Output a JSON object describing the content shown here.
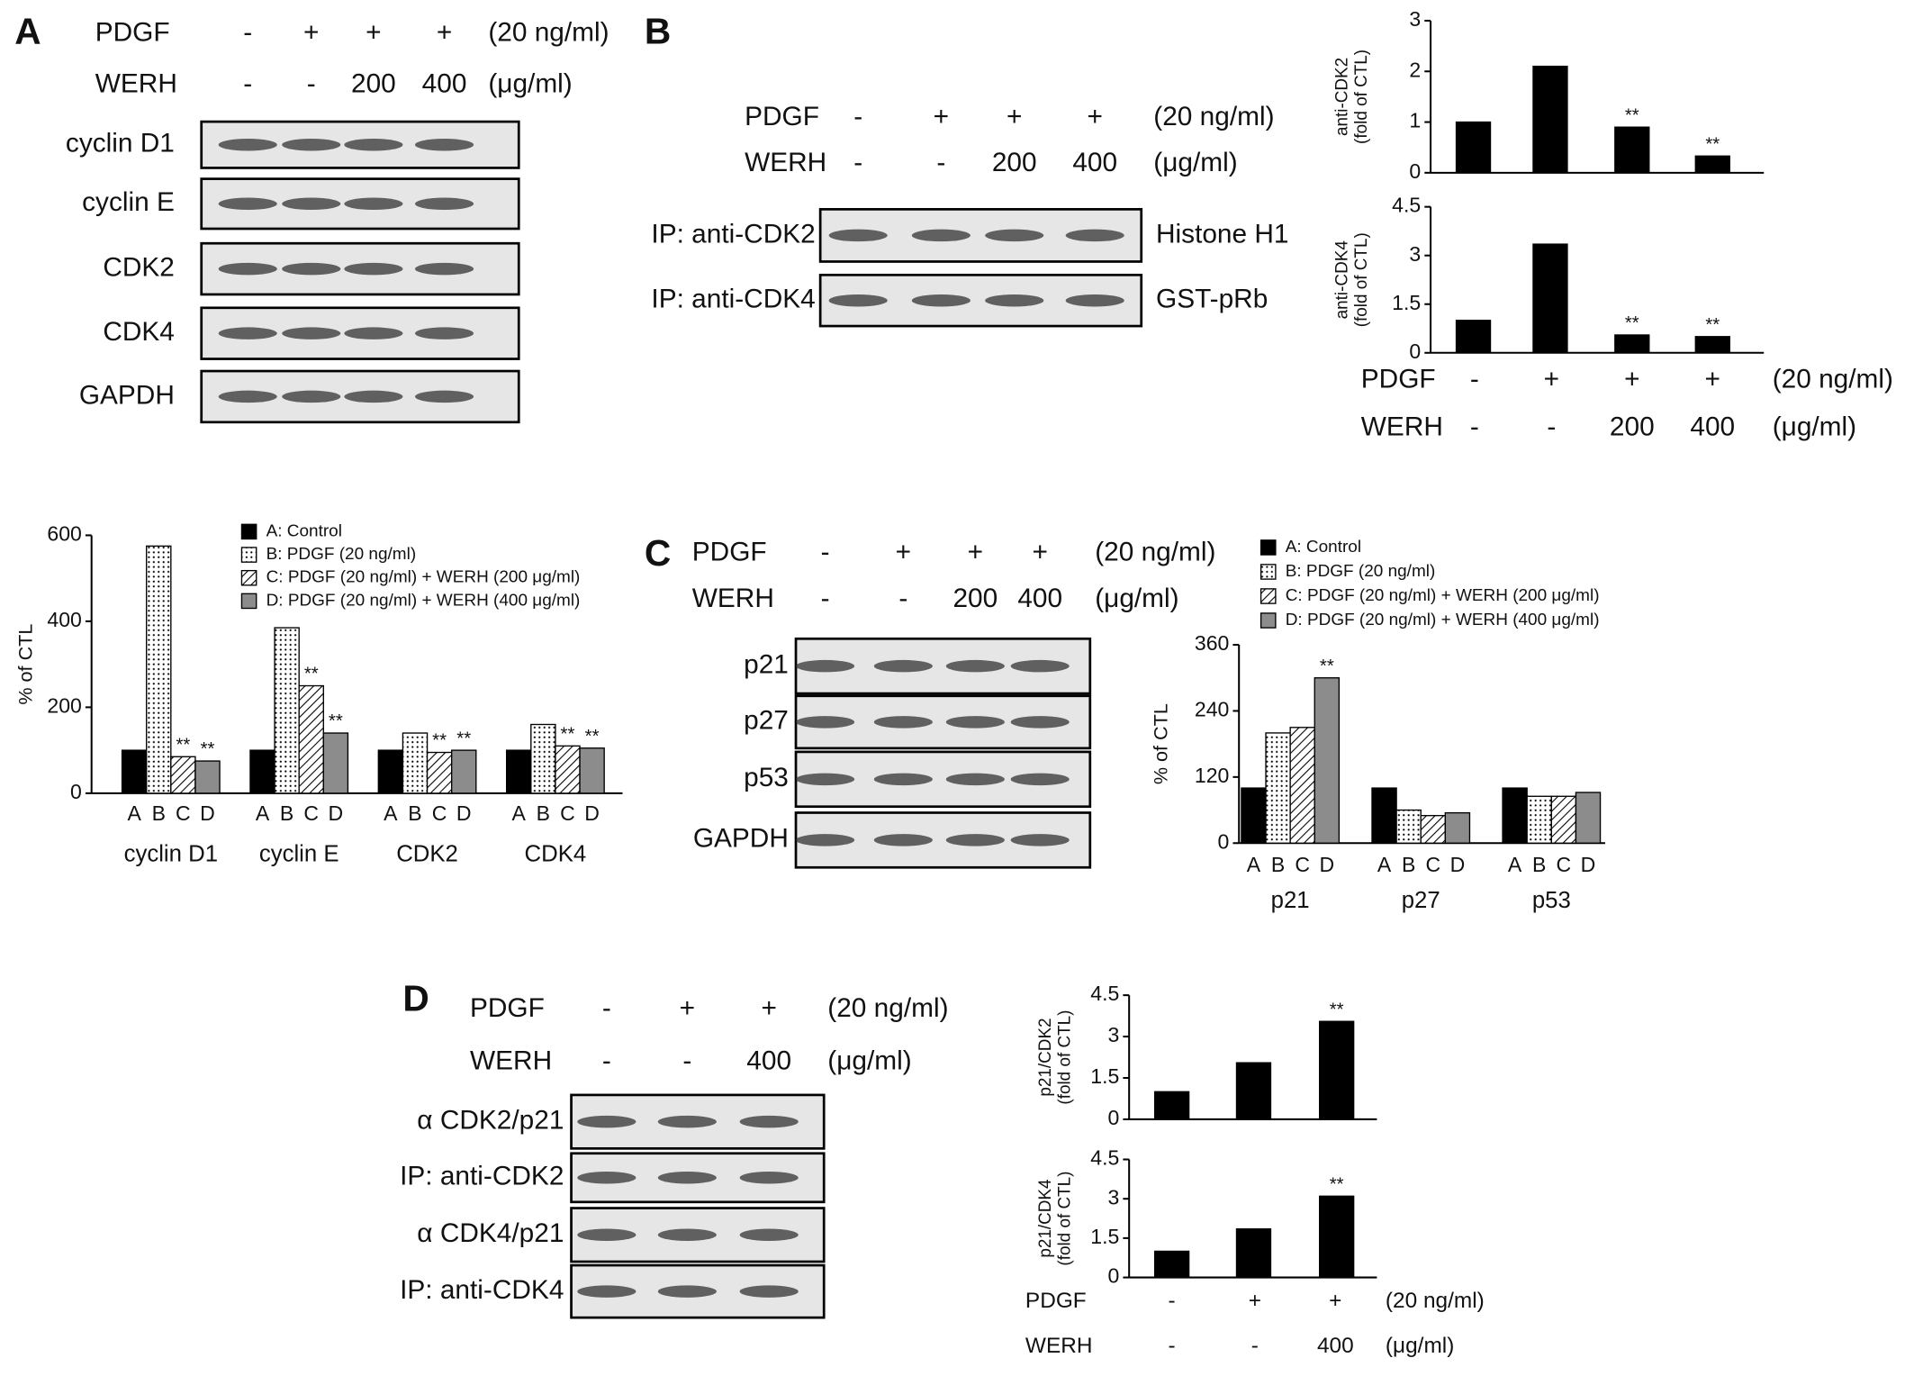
{
  "panels": [
    {
      "letter": "A",
      "treatments": [
        {
          "name": "PDGF",
          "levels": [
            "-",
            "+",
            "+",
            "+"
          ],
          "unit": "(20 ng/ml)"
        },
        {
          "name": "WERH",
          "levels": [
            "-",
            "-",
            "200",
            "400"
          ],
          "unit": "(μg/ml)"
        }
      ],
      "blot_rows": [
        "cyclin D1",
        "cyclin E",
        "CDK2",
        "CDK4",
        "GAPDH"
      ]
    },
    {
      "letter": "B",
      "treatments": [
        {
          "name": "PDGF",
          "levels": [
            "-",
            "+",
            "+",
            "+"
          ],
          "unit": "(20 ng/ml)"
        },
        {
          "name": "WERH",
          "levels": [
            "-",
            "-",
            "200",
            "400"
          ],
          "unit": "(μg/ml)"
        }
      ],
      "blot_rows": [
        "IP: anti-CDK2",
        "IP: anti-CDK4"
      ],
      "blot_substrates": [
        "Histone H1",
        "GST-pRb"
      ],
      "chart_treatments": [
        {
          "name": "PDGF",
          "levels": [
            "-",
            "+",
            "+",
            "+"
          ],
          "unit": "(20 ng/ml)"
        },
        {
          "name": "WERH",
          "levels": [
            "-",
            "-",
            "200",
            "400"
          ],
          "unit": "(μg/ml)"
        }
      ]
    },
    {
      "letter": "C",
      "treatments": [
        {
          "name": "PDGF",
          "levels": [
            "-",
            "+",
            "+",
            "+"
          ],
          "unit": "(20 ng/ml)"
        },
        {
          "name": "WERH",
          "levels": [
            "-",
            "-",
            "200",
            "400"
          ],
          "unit": "(μg/ml)"
        }
      ],
      "blot_rows": [
        "p21",
        "p27",
        "p53",
        "GAPDH"
      ]
    },
    {
      "letter": "D",
      "treatments": [
        {
          "name": "PDGF",
          "levels": [
            "-",
            "+",
            "+"
          ],
          "unit": "(20 ng/ml)"
        },
        {
          "name": "WERH",
          "levels": [
            "-",
            "-",
            "400"
          ],
          "unit": "(μg/ml)"
        }
      ],
      "blot_rows": [
        "α CDK2/p21",
        "IP: anti-CDK2",
        "α CDK4/p21",
        "IP: anti-CDK4"
      ],
      "chart_treatments": [
        {
          "name": "PDGF",
          "levels": [
            "-",
            "+",
            "+"
          ],
          "unit": "(20 ng/ml)"
        },
        {
          "name": "WERH",
          "levels": [
            "-",
            "-",
            "400"
          ],
          "unit": "(μg/ml)"
        }
      ]
    }
  ],
  "chart_data": [
    {
      "type": "bar",
      "ylabel": [
        "% of CTL"
      ],
      "categories": [
        "cyclin D1",
        "cyclin E",
        "CDK2",
        "CDK4"
      ],
      "bar_labels": [
        "A",
        "B",
        "C",
        "D"
      ],
      "series": [
        {
          "name": "A: Control",
          "color": "#000000",
          "values": [
            100,
            100,
            100,
            100
          ]
        },
        {
          "name": "B: PDGF (20 ng/ml)",
          "color": "#ffffff",
          "pattern": "dots",
          "values": [
            575,
            385,
            140,
            160
          ]
        },
        {
          "name": "C: PDGF (20 ng/ml) + WERH (200 μg/ml)",
          "color": "#ffffff",
          "pattern": "hatch",
          "values": [
            85,
            250,
            95,
            110
          ],
          "annotations": [
            "**",
            "**",
            "**",
            "**"
          ]
        },
        {
          "name": "D: PDGF (20 ng/ml) + WERH (400 μg/ml)",
          "color": "#8c8c8c",
          "values": [
            75,
            140,
            100,
            105
          ],
          "annotations": [
            "**",
            "**",
            "**",
            "**"
          ]
        }
      ],
      "ylim": [
        0,
        600
      ],
      "yticks": [
        0,
        200,
        400,
        600
      ]
    },
    {
      "type": "bar",
      "ylabel": [
        "anti-CDK2",
        "(fold of CTL)"
      ],
      "color": "#000000",
      "values": [
        1,
        2.1,
        0.9,
        0.33
      ],
      "annotations": [
        null,
        null,
        "**",
        "**"
      ],
      "ylim": [
        0,
        3
      ],
      "yticks": [
        0,
        1,
        2,
        3
      ]
    },
    {
      "type": "bar",
      "ylabel": [
        "anti-CDK4",
        "(fold of CTL)"
      ],
      "color": "#000000",
      "values": [
        1,
        3.35,
        0.55,
        0.5
      ],
      "annotations": [
        null,
        null,
        "**",
        "**"
      ],
      "ylim": [
        0,
        4.5
      ],
      "yticks": [
        0,
        1.5,
        3,
        4.5
      ]
    },
    {
      "type": "bar",
      "ylabel": [
        "% of CTL"
      ],
      "categories": [
        "p21",
        "p27",
        "p53"
      ],
      "bar_labels": [
        "A",
        "B",
        "C",
        "D"
      ],
      "series": [
        {
          "name": "A: Control",
          "color": "#000000",
          "values": [
            100,
            100,
            100
          ]
        },
        {
          "name": "B: PDGF (20 ng/ml)",
          "color": "#ffffff",
          "pattern": "dots",
          "values": [
            200,
            60,
            85
          ]
        },
        {
          "name": "C: PDGF (20 ng/ml) + WERH (200 μg/ml)",
          "color": "#ffffff",
          "pattern": "hatch",
          "values": [
            210,
            50,
            85
          ]
        },
        {
          "name": "D: PDGF (20 ng/ml) + WERH (400 μg/ml)",
          "color": "#8c8c8c",
          "values": [
            300,
            55,
            92
          ],
          "annotations": [
            "**",
            null,
            null
          ]
        }
      ],
      "ylim": [
        0,
        360
      ],
      "yticks": [
        0,
        120,
        240,
        360
      ]
    },
    {
      "type": "bar",
      "ylabel": [
        "p21/CDK2",
        "(fold of CTL)"
      ],
      "color": "#000000",
      "values": [
        1,
        2.05,
        3.55
      ],
      "annotations": [
        null,
        null,
        "**"
      ],
      "ylim": [
        0,
        4.5
      ],
      "yticks": [
        0,
        1.5,
        3,
        4.5
      ]
    },
    {
      "type": "bar",
      "ylabel": [
        "p21/CDK4",
        "(fold of CTL)"
      ],
      "color": "#000000",
      "values": [
        1,
        1.85,
        3.1
      ],
      "annotations": [
        null,
        null,
        "**"
      ],
      "ylim": [
        0,
        4.5
      ],
      "yticks": [
        0,
        1.5,
        3,
        4.5
      ]
    }
  ]
}
